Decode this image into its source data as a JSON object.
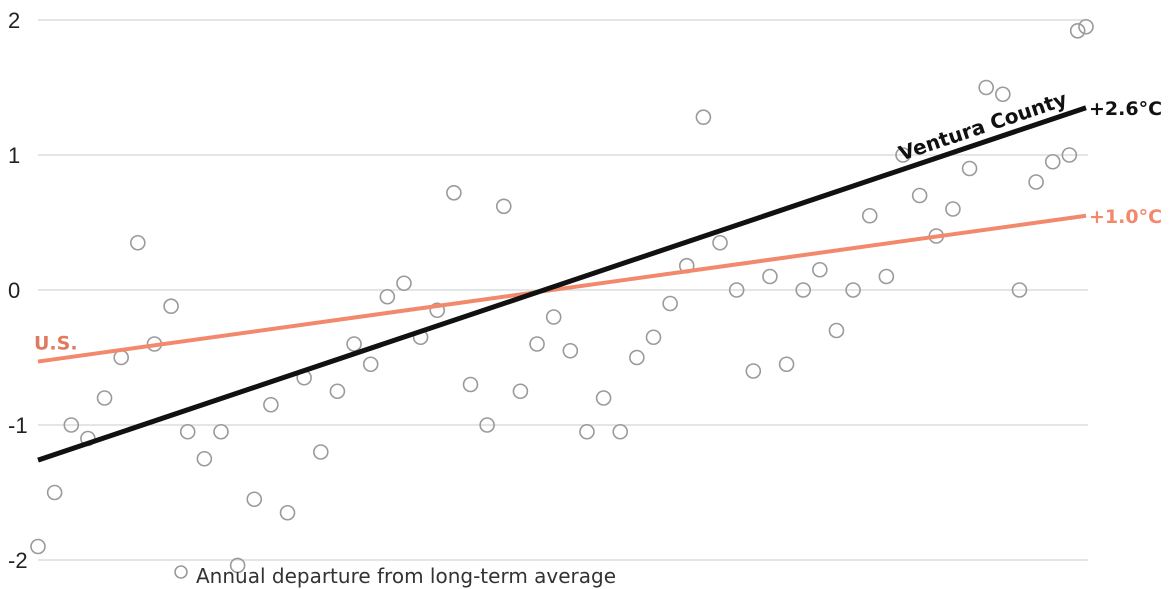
{
  "chart_data": {
    "type": "scatter",
    "ylim": [
      -2,
      2
    ],
    "xlim": [
      0,
      126
    ],
    "yticks": [
      {
        "value": 2,
        "label": "2"
      },
      {
        "value": 1,
        "label": "1"
      },
      {
        "value": 0,
        "label": "0"
      },
      {
        "value": -1,
        "label": "-1"
      },
      {
        "value": -2,
        "label": "-2"
      }
    ],
    "grid": true,
    "legend": {
      "position": "bottom-left",
      "label": "Annual departure from long-term average"
    },
    "points": [
      {
        "x": 0,
        "y": -1.9
      },
      {
        "x": 2,
        "y": -1.5
      },
      {
        "x": 4,
        "y": -1.0
      },
      {
        "x": 6,
        "y": -1.1
      },
      {
        "x": 8,
        "y": -0.8
      },
      {
        "x": 10,
        "y": -0.5
      },
      {
        "x": 12,
        "y": 0.35
      },
      {
        "x": 14,
        "y": -0.4
      },
      {
        "x": 16,
        "y": -0.12
      },
      {
        "x": 18,
        "y": -1.05
      },
      {
        "x": 20,
        "y": -1.25
      },
      {
        "x": 22,
        "y": -1.05
      },
      {
        "x": 24,
        "y": -2.04
      },
      {
        "x": 26,
        "y": -1.55
      },
      {
        "x": 28,
        "y": -0.85
      },
      {
        "x": 30,
        "y": -1.65
      },
      {
        "x": 32,
        "y": -0.65
      },
      {
        "x": 34,
        "y": -1.2
      },
      {
        "x": 36,
        "y": -0.75
      },
      {
        "x": 38,
        "y": -0.4
      },
      {
        "x": 40,
        "y": -0.55
      },
      {
        "x": 42,
        "y": -0.05
      },
      {
        "x": 44,
        "y": 0.05
      },
      {
        "x": 46,
        "y": -0.35
      },
      {
        "x": 48,
        "y": -0.15
      },
      {
        "x": 50,
        "y": 0.72
      },
      {
        "x": 52,
        "y": -0.7
      },
      {
        "x": 54,
        "y": -1.0
      },
      {
        "x": 56,
        "y": 0.62
      },
      {
        "x": 58,
        "y": -0.75
      },
      {
        "x": 60,
        "y": -0.4
      },
      {
        "x": 62,
        "y": -0.2
      },
      {
        "x": 64,
        "y": -0.45
      },
      {
        "x": 66,
        "y": -1.05
      },
      {
        "x": 68,
        "y": -0.8
      },
      {
        "x": 70,
        "y": -1.05
      },
      {
        "x": 72,
        "y": -0.5
      },
      {
        "x": 74,
        "y": -0.35
      },
      {
        "x": 76,
        "y": -0.1
      },
      {
        "x": 78,
        "y": 0.18
      },
      {
        "x": 80,
        "y": 1.28
      },
      {
        "x": 82,
        "y": 0.35
      },
      {
        "x": 84,
        "y": 0.0
      },
      {
        "x": 86,
        "y": -0.6
      },
      {
        "x": 88,
        "y": 0.1
      },
      {
        "x": 90,
        "y": -0.55
      },
      {
        "x": 92,
        "y": 0.0
      },
      {
        "x": 94,
        "y": 0.15
      },
      {
        "x": 96,
        "y": -0.3
      },
      {
        "x": 98,
        "y": 0.0
      },
      {
        "x": 100,
        "y": 0.55
      },
      {
        "x": 102,
        "y": 0.1
      },
      {
        "x": 104,
        "y": 1.0
      },
      {
        "x": 106,
        "y": 0.7
      },
      {
        "x": 108,
        "y": 0.4
      },
      {
        "x": 110,
        "y": 0.6
      },
      {
        "x": 112,
        "y": 0.9
      },
      {
        "x": 114,
        "y": 1.5
      },
      {
        "x": 116,
        "y": 1.45
      },
      {
        "x": 118,
        "y": 0.0
      },
      {
        "x": 120,
        "y": 0.8
      },
      {
        "x": 122,
        "y": 0.95
      },
      {
        "x": 124,
        "y": 1.0
      },
      {
        "x": 125,
        "y": 1.92
      },
      {
        "x": 126,
        "y": 1.95
      }
    ],
    "series": [
      {
        "key": "ventura",
        "label": "Ventura County",
        "end_label": "+2.6°C",
        "color": "#111111",
        "x": [
          0,
          126
        ],
        "y": [
          -1.26,
          1.35
        ]
      },
      {
        "key": "us",
        "label": "U.S.",
        "end_label": "+1.0°C",
        "color": "#f2896c",
        "x": [
          0,
          126
        ],
        "y": [
          -0.53,
          0.55
        ]
      }
    ]
  },
  "colors": {
    "grid": "#cfd6dc",
    "points": "#9a9a9a",
    "ventura": "#111111",
    "us": "#f2896c"
  }
}
